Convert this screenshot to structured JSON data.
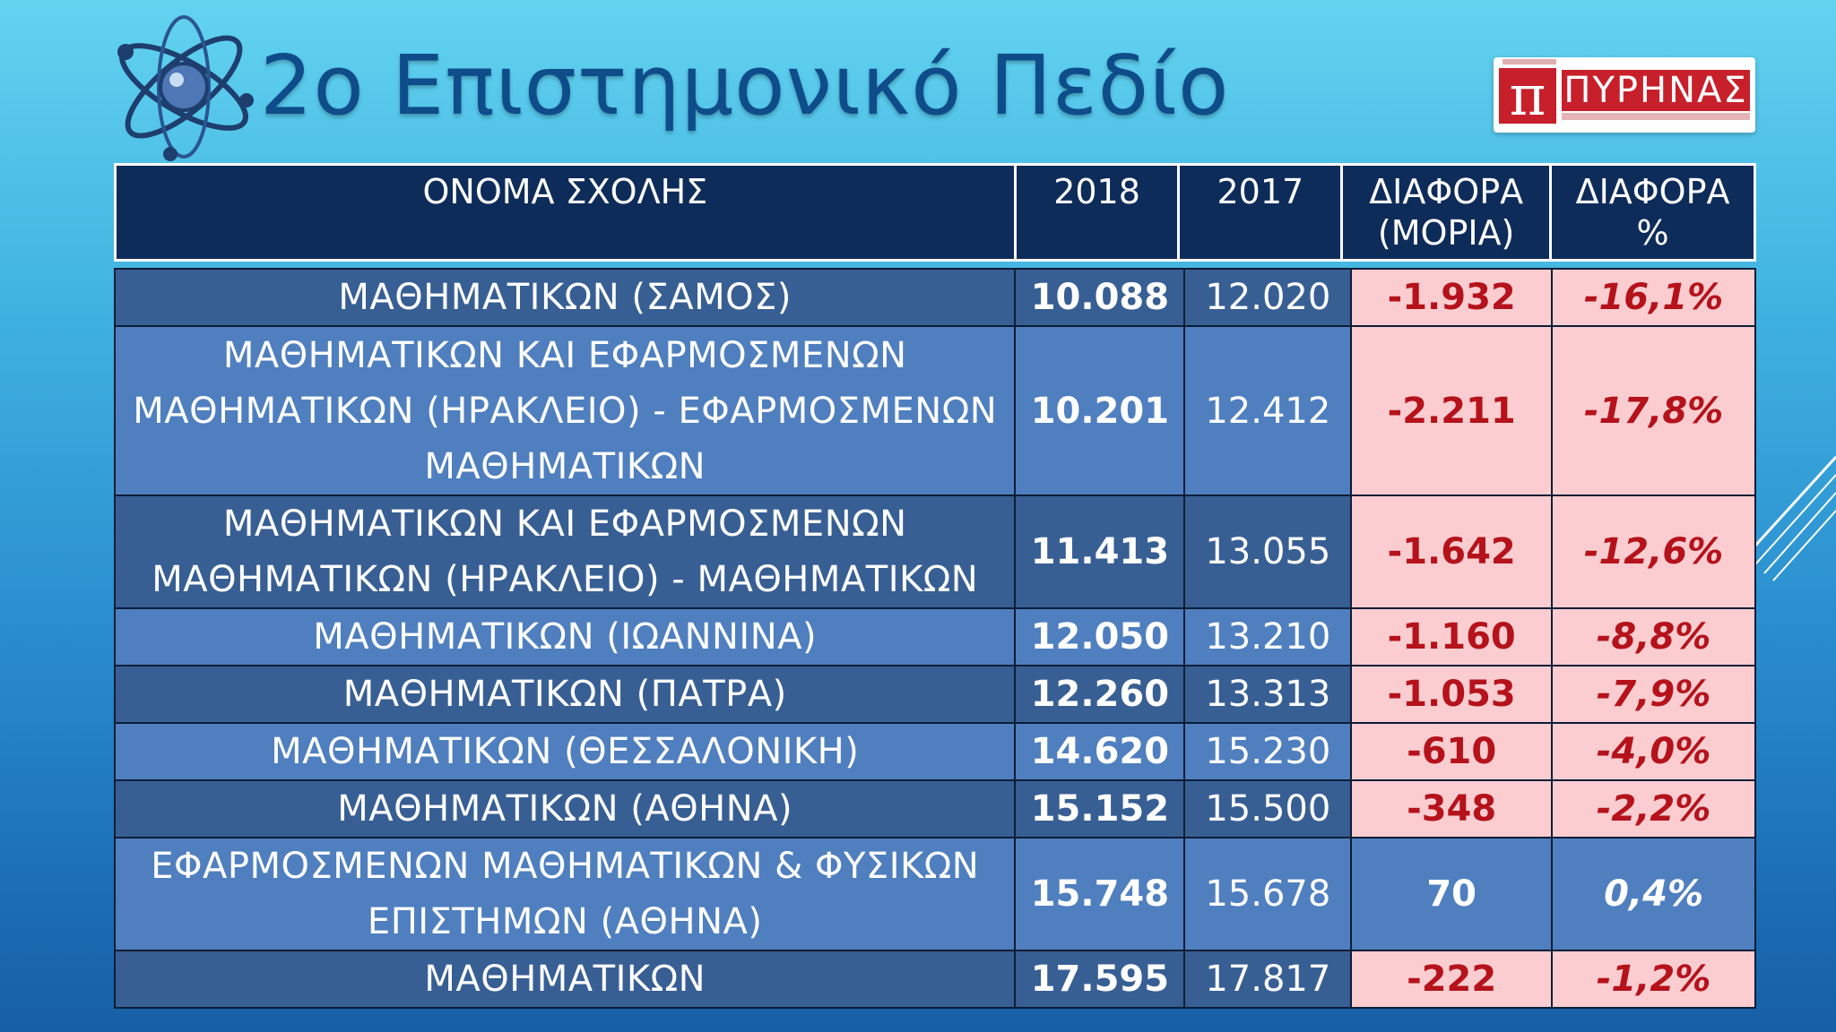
{
  "slide": {
    "title": "2ο Επιστημονικό Πεδίο",
    "logo_text": "ΠΥΡΗΝΑΣ",
    "icons": [
      "atom-icon",
      "pi-logo-icon"
    ]
  },
  "table": {
    "headers": {
      "name": "ΟΝΟΜΑ ΣΧΟΛΗΣ",
      "y2018": "2018",
      "y2017": "2017",
      "diff_points_line1": "ΔΙΑΦΟΡΑ",
      "diff_points_line2": "(ΜΟΡΙΑ)",
      "diff_pct_line1": "ΔΙΑΦΟΡΑ",
      "diff_pct_line2": "%"
    },
    "rows": [
      {
        "name": "ΜΑΘΗΜΑΤΙΚΩΝ (ΣΑΜΟΣ)",
        "y2018": "10.088",
        "y2017": "12.020",
        "diff": "-1.932",
        "pct": "-16,1%"
      },
      {
        "name": "ΜΑΘΗΜΑΤΙΚΩΝ ΚΑΙ ΕΦΑΡΜΟΣΜΕΝΩΝ ΜΑΘΗΜΑΤΙΚΩΝ (ΗΡΑΚΛΕΙΟ) - ΕΦΑΡΜΟΣΜΕΝΩΝ ΜΑΘΗΜΑΤΙΚΩΝ",
        "y2018": "10.201",
        "y2017": "12.412",
        "diff": "-2.211",
        "pct": "-17,8%"
      },
      {
        "name": "ΜΑΘΗΜΑΤΙΚΩΝ ΚΑΙ ΕΦΑΡΜΟΣΜΕΝΩΝ ΜΑΘΗΜΑΤΙΚΩΝ (ΗΡΑΚΛΕΙΟ) - ΜΑΘΗΜΑΤΙΚΩΝ",
        "y2018": "11.413",
        "y2017": "13.055",
        "diff": "-1.642",
        "pct": "-12,6%"
      },
      {
        "name": "ΜΑΘΗΜΑΤΙΚΩΝ (ΙΩΑΝΝΙΝΑ)",
        "y2018": "12.050",
        "y2017": "13.210",
        "diff": "-1.160",
        "pct": "-8,8%"
      },
      {
        "name": "ΜΑΘΗΜΑΤΙΚΩΝ (ΠΑΤΡΑ)",
        "y2018": "12.260",
        "y2017": "13.313",
        "diff": "-1.053",
        "pct": "-7,9%"
      },
      {
        "name": "ΜΑΘΗΜΑΤΙΚΩΝ (ΘΕΣΣΑΛΟΝΙΚΗ)",
        "y2018": "14.620",
        "y2017": "15.230",
        "diff": "-610",
        "pct": "-4,0%"
      },
      {
        "name": "ΜΑΘΗΜΑΤΙΚΩΝ (ΑΘΗΝΑ)",
        "y2018": "15.152",
        "y2017": "15.500",
        "diff": "-348",
        "pct": "-2,2%"
      },
      {
        "name": "ΕΦΑΡΜΟΣΜΕΝΩΝ ΜΑΘΗΜΑΤΙΚΩΝ & ΦΥΣΙΚΩΝ ΕΠΙΣΤΗΜΩΝ (ΑΘΗΝΑ)",
        "y2018": "15.748",
        "y2017": "15.678",
        "diff": "70",
        "pct": "0,4%"
      },
      {
        "name": "ΜΑΘΗΜΑΤΙΚΩΝ",
        "y2018": "17.595",
        "y2017": "17.817",
        "diff": "-222",
        "pct": "-1,2%"
      }
    ]
  },
  "colors": {
    "negative_cell_bg": "#fbcdd0",
    "negative_text": "#b5121b",
    "header_bg": "#0e2c5a",
    "row_dark": "#385f94",
    "row_light": "#4f7fbf"
  }
}
